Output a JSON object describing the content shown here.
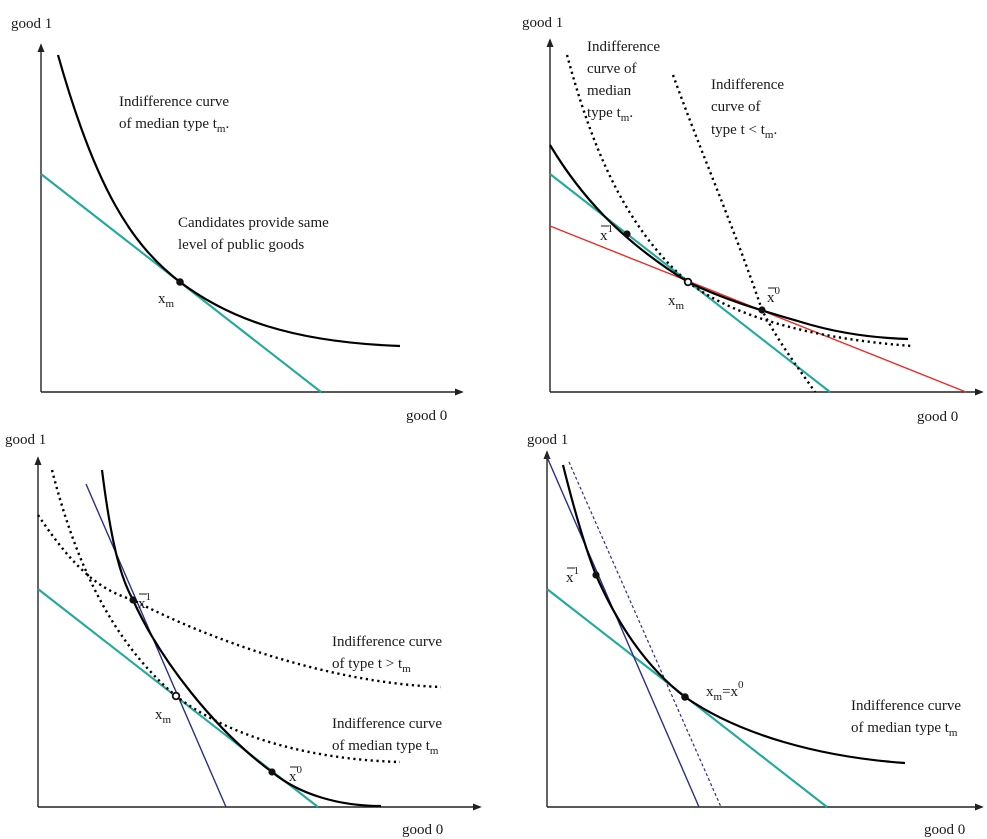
{
  "panels": [
    {
      "id": "top-left",
      "y_axis_label": "good 1",
      "x_axis_label": "good 0",
      "annotations": {
        "curve_line1": "Indifference curve",
        "curve_line2": "of median type t",
        "curve_sub": "m",
        "curve_tail": ".",
        "cand_line1": "Candidates provide same",
        "cand_line2": "level of public goods",
        "xm": "x",
        "xm_sub": "m"
      }
    },
    {
      "id": "top-right",
      "y_axis_label": "good 1",
      "x_axis_label": "good 0",
      "annotations": {
        "median_line1": "Indifference",
        "median_line2": "curve of",
        "median_line3": "median",
        "median_line4": "type t",
        "median_sub": "m",
        "median_tail": ".",
        "type_line1": "Indifference",
        "type_line2": "curve of",
        "type_line3": "type t < t",
        "type_sub": "m",
        "type_tail": ".",
        "x1": "x",
        "x1_sup": "1",
        "x0": "x",
        "x0_sup": "0",
        "xm": "x",
        "xm_sub": "m"
      }
    },
    {
      "id": "bottom-left",
      "y_axis_label": "good 1",
      "x_axis_label": "good 0",
      "annotations": {
        "upper_line1": "Indifference curve",
        "upper_line2": "of type t > t",
        "upper_sub": "m",
        "lower_line1": "Indifference curve",
        "lower_line2": "of median type t",
        "lower_sub": "m",
        "x1": "x",
        "x1_sup": "1",
        "x0": "x",
        "x0_sup": "0",
        "xm": "x",
        "xm_sub": "m"
      }
    },
    {
      "id": "bottom-right",
      "y_axis_label": "good 1",
      "x_axis_label": "good 0",
      "annotations": {
        "curve_line1": "Indifference curve",
        "curve_line2": "of median type t",
        "curve_sub": "m",
        "x1": "x",
        "x1_sup": "1",
        "xm": "x",
        "xm_sub": "m",
        "xm_eq": "=x",
        "xm_sup": "0"
      }
    }
  ]
}
